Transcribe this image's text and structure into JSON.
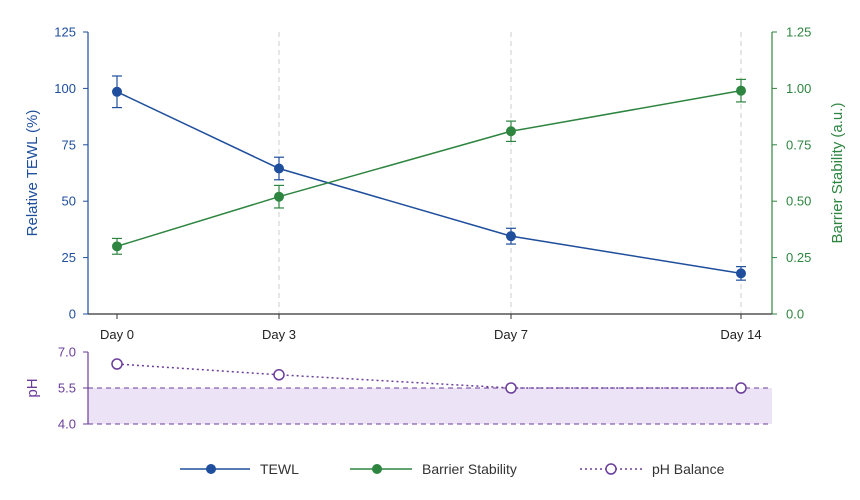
{
  "chart_data": [
    {
      "type": "line",
      "categories": [
        "Day 0",
        "Day 3",
        "Day 7",
        "Day 14"
      ],
      "x": [
        0,
        3,
        7,
        14
      ],
      "ylabel": "Relative TEWL (%)",
      "ylabel_right": "Barrier Stability (a.u.)",
      "ylim": [
        0,
        125
      ],
      "ylim_right": [
        0,
        1.25
      ],
      "yticks": [
        "0",
        "25",
        "50",
        "75",
        "100",
        "125"
      ],
      "yticks_right": [
        "0.0",
        "0.25",
        "0.50",
        "0.75",
        "1.00",
        "1.25"
      ],
      "vertical_gridlines": "dashed, at Day 3, Day 7, Day 14",
      "series": [
        {
          "name": "TEWL",
          "axis": "left",
          "color": "#1f4e9c",
          "values": [
            98.5,
            64.5,
            34.5,
            18
          ],
          "error": [
            7,
            5,
            3.5,
            3
          ]
        },
        {
          "name": "Barrier Stability",
          "axis": "right",
          "color": "#2e8540",
          "values": [
            0.3,
            0.52,
            0.81,
            0.99
          ],
          "error": [
            0.035,
            0.05,
            0.045,
            0.05
          ]
        }
      ]
    },
    {
      "type": "line",
      "x": [
        0,
        3,
        7,
        14
      ],
      "ylabel": "pH",
      "ylim": [
        4.0,
        7.0
      ],
      "yticks": [
        "7.0",
        "5.5",
        "4.0"
      ],
      "band": [
        4.0,
        5.5
      ],
      "series": [
        {
          "name": "pH Balance",
          "color": "#6a3d9a",
          "style": "dotted, open circles",
          "values": [
            6.5,
            6.05,
            5.5,
            5.5
          ]
        }
      ]
    }
  ],
  "legend": {
    "placement": "bottom-center",
    "items": [
      {
        "label": "TEWL",
        "color": "#1f4e9c"
      },
      {
        "label": "Barrier Stability",
        "color": "#2e8540"
      },
      {
        "label": "pH Balance",
        "color": "#6a3d9a"
      }
    ]
  }
}
